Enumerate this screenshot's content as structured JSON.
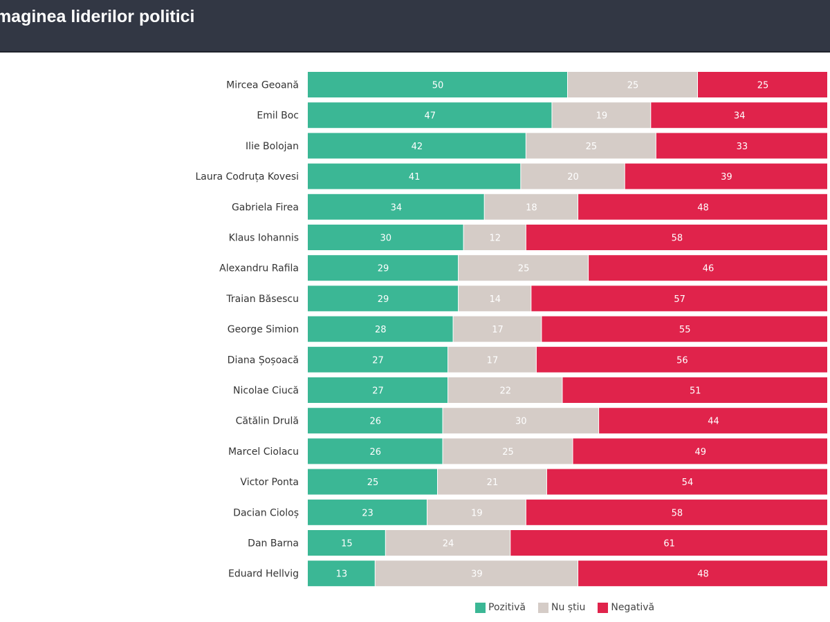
{
  "header": {
    "title": "Imaginea liderilor politici"
  },
  "chart_data": {
    "type": "bar",
    "orientation": "horizontal",
    "stacked": true,
    "title": "Imaginea liderilor politici",
    "categories": [
      "Mircea Geoană",
      "Emil Boc",
      "Ilie Bolojan",
      "Laura Codruța Kovesi",
      "Gabriela Firea",
      "Klaus Iohannis",
      "Alexandru Rafila",
      "Traian Băsescu",
      "George Simion",
      "Diana Șoșoacă",
      "Nicolae Ciucă",
      "Cătălin Drulă",
      "Marcel Ciolacu",
      "Victor Ponta",
      "Dacian Cioloș",
      "Dan Barna",
      "Eduard Hellvig"
    ],
    "series": [
      {
        "name": "Pozitivă",
        "color": "#3bb795",
        "values": [
          50,
          47,
          42,
          41,
          34,
          30,
          29,
          29,
          28,
          27,
          27,
          26,
          26,
          25,
          23,
          15,
          13
        ]
      },
      {
        "name": "Nu știu",
        "color": "#d5ccc7",
        "values": [
          25,
          19,
          25,
          20,
          18,
          12,
          25,
          14,
          17,
          17,
          22,
          30,
          25,
          21,
          19,
          24,
          39
        ]
      },
      {
        "name": "Negativă",
        "color": "#e0234b",
        "values": [
          25,
          34,
          33,
          39,
          48,
          58,
          46,
          57,
          55,
          56,
          51,
          44,
          49,
          54,
          58,
          61,
          48
        ]
      }
    ],
    "xlim": [
      0,
      100
    ],
    "grid": false,
    "legend": "bottom",
    "data_labels": true
  }
}
